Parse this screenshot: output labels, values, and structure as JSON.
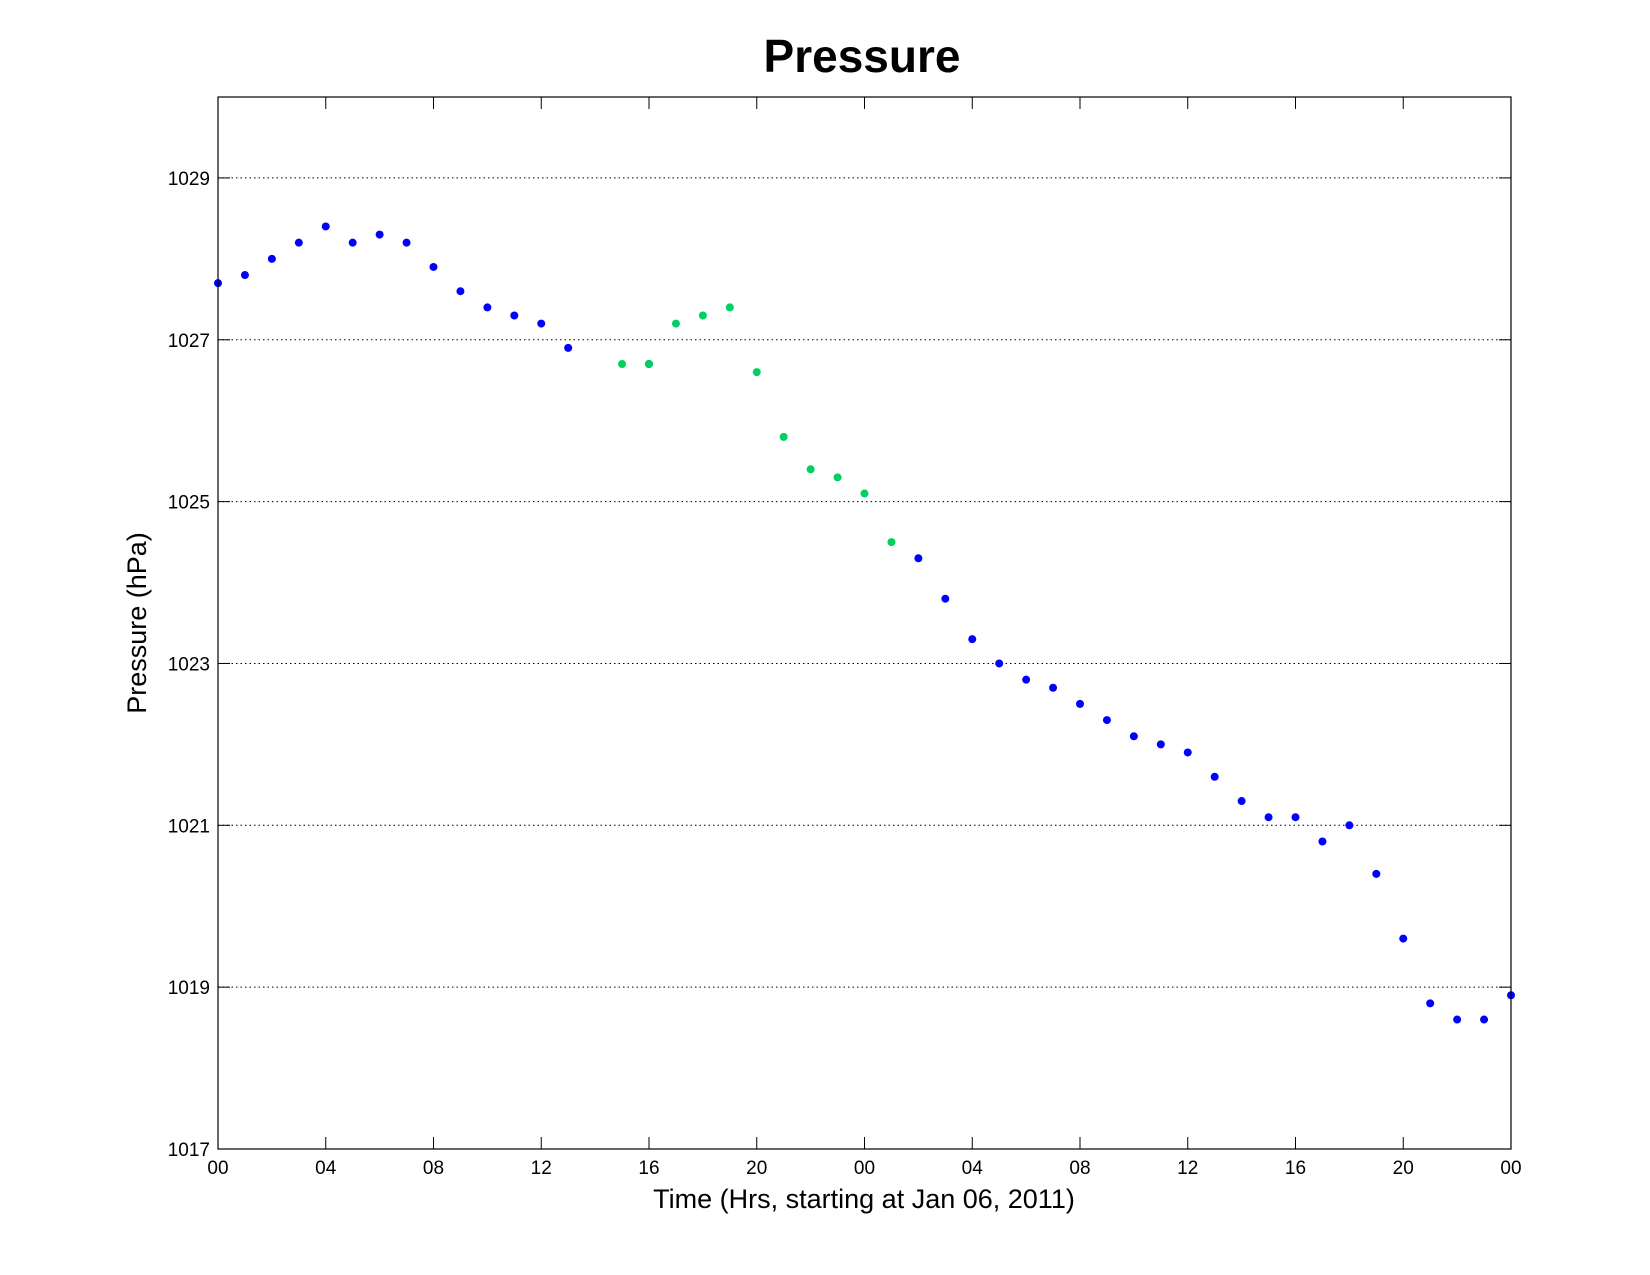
{
  "chart_data": {
    "type": "scatter",
    "title": "Pressure",
    "xlabel": "Time (Hrs, starting at Jan 06, 2011)",
    "ylabel": "Pressure (hPa)",
    "xlim": [
      "Jan 06 00:00",
      "Jan 08 00:00"
    ],
    "ylim": [
      1017,
      1030
    ],
    "x_tick_labels": [
      "00",
      "04",
      "08",
      "12",
      "16",
      "20",
      "00",
      "04",
      "08",
      "12",
      "16",
      "20",
      "00"
    ],
    "y_ticks": [
      1017,
      1019,
      1021,
      1023,
      1025,
      1027,
      1029
    ],
    "grid": "horizontal dotted",
    "series": [
      {
        "color": "#0000ff",
        "points": [
          [
            "Jan 06 00:00",
            1027.7
          ],
          [
            "Jan 06 01:00",
            1027.8
          ],
          [
            "Jan 06 02:00",
            1028.0
          ],
          [
            "Jan 06 03:00",
            1028.2
          ],
          [
            "Jan 06 04:00",
            1028.4
          ],
          [
            "Jan 06 05:00",
            1028.2
          ],
          [
            "Jan 06 06:00",
            1028.3
          ],
          [
            "Jan 06 07:00",
            1028.2
          ],
          [
            "Jan 06 08:00",
            1027.9
          ],
          [
            "Jan 06 09:00",
            1027.6
          ],
          [
            "Jan 06 10:00",
            1027.4
          ],
          [
            "Jan 06 11:00",
            1027.3
          ],
          [
            "Jan 06 12:00",
            1027.2
          ],
          [
            "Jan 06 13:00",
            1026.9
          ],
          [
            "Jan 06 16:00",
            1026.7
          ],
          [
            "Jan 07 02:00",
            1024.3
          ],
          [
            "Jan 07 03:00",
            1023.8
          ],
          [
            "Jan 07 04:00",
            1023.3
          ],
          [
            "Jan 07 05:00",
            1023.0
          ],
          [
            "Jan 07 06:00",
            1022.8
          ],
          [
            "Jan 07 07:00",
            1022.7
          ],
          [
            "Jan 07 08:00",
            1022.5
          ],
          [
            "Jan 07 09:00",
            1022.3
          ],
          [
            "Jan 07 10:00",
            1022.1
          ],
          [
            "Jan 07 11:00",
            1022.0
          ],
          [
            "Jan 07 12:00",
            1021.9
          ],
          [
            "Jan 07 13:00",
            1021.6
          ],
          [
            "Jan 07 14:00",
            1021.3
          ],
          [
            "Jan 07 15:00",
            1021.1
          ],
          [
            "Jan 07 16:00",
            1021.1
          ],
          [
            "Jan 07 17:00",
            1020.8
          ],
          [
            "Jan 07 18:00",
            1021.0
          ],
          [
            "Jan 07 19:00",
            1020.4
          ],
          [
            "Jan 07 20:00",
            1019.6
          ],
          [
            "Jan 07 21:00",
            1018.8
          ],
          [
            "Jan 07 22:00",
            1018.6
          ],
          [
            "Jan 07 23:00",
            1018.6
          ],
          [
            "Jan 08 00:00",
            1018.9
          ]
        ]
      },
      {
        "color": "#00d060",
        "points": [
          [
            "Jan 06 15:00",
            1026.7
          ],
          [
            "Jan 06 16:00",
            1026.7
          ],
          [
            "Jan 06 17:00",
            1027.2
          ],
          [
            "Jan 06 18:00",
            1027.3
          ],
          [
            "Jan 06 19:00",
            1027.4
          ],
          [
            "Jan 06 20:00",
            1026.6
          ],
          [
            "Jan 06 21:00",
            1025.8
          ],
          [
            "Jan 06 22:00",
            1025.4
          ],
          [
            "Jan 06 23:00",
            1025.3
          ],
          [
            "Jan 07 00:00",
            1025.1
          ],
          [
            "Jan 07 01:00",
            1024.5
          ]
        ]
      }
    ]
  }
}
